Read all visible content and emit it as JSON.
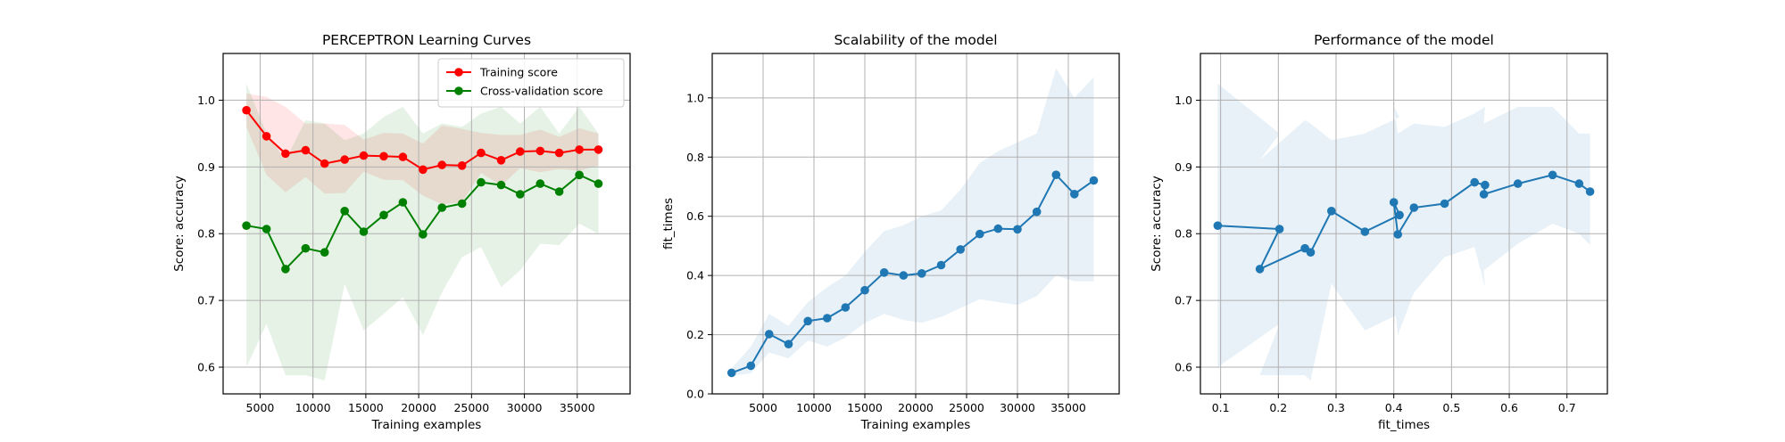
{
  "chart_data": [
    {
      "type": "line",
      "title": "PERCEPTRON Learning Curves",
      "xlabel": "Training examples",
      "ylabel": "Score: accuracy",
      "xlim": [
        1500,
        40000
      ],
      "ylim": [
        0.56,
        1.07
      ],
      "xticks": [
        5000,
        10000,
        15000,
        20000,
        25000,
        30000,
        35000
      ],
      "yticks": [
        0.6,
        0.7,
        0.8,
        0.9,
        1.0
      ],
      "ytick_decimals": 1,
      "grid": true,
      "legend": "top-right",
      "x": [
        3700,
        5600,
        7400,
        9300,
        11100,
        13000,
        14800,
        16700,
        18500,
        20400,
        22200,
        24100,
        25900,
        27800,
        29600,
        31500,
        33300,
        35200,
        37000
      ],
      "series": [
        {
          "name": "Training score",
          "color": "#ff0000",
          "marker": true,
          "values": [
            0.985,
            0.946,
            0.92,
            0.925,
            0.905,
            0.911,
            0.917,
            0.916,
            0.915,
            0.896,
            0.903,
            0.902,
            0.921,
            0.91,
            0.923,
            0.924,
            0.921,
            0.926,
            0.926
          ],
          "band_upper": [
            1.01,
            1.005,
            0.99,
            0.965,
            0.965,
            0.963,
            0.941,
            0.951,
            0.95,
            0.935,
            0.962,
            0.957,
            0.951,
            0.948,
            0.948,
            0.956,
            0.945,
            0.958,
            0.95
          ],
          "band_lower": [
            0.96,
            0.888,
            0.862,
            0.885,
            0.86,
            0.861,
            0.893,
            0.881,
            0.88,
            0.857,
            0.844,
            0.847,
            0.891,
            0.872,
            0.898,
            0.892,
            0.897,
            0.894,
            0.902
          ],
          "band_color": "#ff0000"
        },
        {
          "name": "Cross-validation score",
          "color": "#008000",
          "marker": true,
          "values": [
            0.812,
            0.807,
            0.747,
            0.778,
            0.772,
            0.834,
            0.803,
            0.828,
            0.847,
            0.799,
            0.839,
            0.845,
            0.877,
            0.873,
            0.859,
            0.875,
            0.863,
            0.888,
            0.875
          ],
          "band_upper": [
            1.025,
            0.95,
            0.91,
            0.97,
            0.965,
            0.94,
            0.95,
            0.975,
            0.99,
            0.95,
            0.965,
            0.96,
            0.98,
            0.99,
            0.965,
            0.99,
            0.95,
            0.99,
            0.95
          ],
          "band_lower": [
            0.6,
            0.665,
            0.588,
            0.588,
            0.58,
            0.725,
            0.655,
            0.68,
            0.705,
            0.648,
            0.712,
            0.765,
            0.78,
            0.72,
            0.745,
            0.785,
            0.783,
            0.815,
            0.8
          ],
          "band_color": "#008000"
        }
      ]
    },
    {
      "type": "line",
      "title": "Scalability of the model",
      "xlabel": "Training examples",
      "ylabel": "fit_times",
      "xlim": [
        0,
        40000
      ],
      "ylim": [
        0.0,
        1.15
      ],
      "xticks": [
        5000,
        10000,
        15000,
        20000,
        25000,
        30000,
        35000
      ],
      "yticks": [
        0.0,
        0.2,
        0.4,
        0.6,
        0.8,
        1.0
      ],
      "ytick_decimals": 1,
      "grid": true,
      "legend": "none",
      "x": [
        1900,
        3800,
        5600,
        7500,
        9400,
        11300,
        13100,
        15000,
        16900,
        18800,
        20600,
        22500,
        24400,
        26300,
        28100,
        30000,
        31900,
        33800,
        35600,
        37500
      ],
      "series": [
        {
          "name": "",
          "color": "#1f77b4",
          "marker": true,
          "values": [
            0.071,
            0.095,
            0.202,
            0.168,
            0.246,
            0.256,
            0.292,
            0.35,
            0.41,
            0.4,
            0.407,
            0.435,
            0.488,
            0.54,
            0.558,
            0.556,
            0.615,
            0.74,
            0.675,
            0.721
          ],
          "band_upper": [
            0.085,
            0.16,
            0.27,
            0.23,
            0.31,
            0.36,
            0.4,
            0.48,
            0.55,
            0.57,
            0.6,
            0.62,
            0.69,
            0.78,
            0.82,
            0.85,
            0.88,
            1.1,
            1.0,
            1.07
          ],
          "band_lower": [
            0.06,
            0.07,
            0.14,
            0.12,
            0.18,
            0.16,
            0.19,
            0.24,
            0.27,
            0.25,
            0.24,
            0.26,
            0.29,
            0.32,
            0.31,
            0.3,
            0.33,
            0.4,
            0.38,
            0.38
          ],
          "band_color": "#1f77b4"
        }
      ]
    },
    {
      "type": "line",
      "title": "Performance of the model",
      "xlabel": "fit_times",
      "ylabel": "Score: accuracy",
      "xlim": [
        0.065,
        0.77
      ],
      "ylim": [
        0.56,
        1.07
      ],
      "xticks": [
        0.1,
        0.2,
        0.3,
        0.4,
        0.5,
        0.6,
        0.7
      ],
      "yticks": [
        0.6,
        0.7,
        0.8,
        0.9,
        1.0
      ],
      "xtick_decimals": 1,
      "ytick_decimals": 1,
      "grid": true,
      "legend": "none",
      "x": [
        0.095,
        0.202,
        0.168,
        0.246,
        0.256,
        0.292,
        0.35,
        0.41,
        0.4,
        0.407,
        0.435,
        0.488,
        0.54,
        0.558,
        0.556,
        0.615,
        0.675,
        0.721,
        0.74
      ],
      "series": [
        {
          "name": "",
          "color": "#1f77b4",
          "marker": true,
          "values": [
            0.812,
            0.807,
            0.747,
            0.778,
            0.772,
            0.834,
            0.803,
            0.828,
            0.847,
            0.799,
            0.839,
            0.845,
            0.877,
            0.873,
            0.859,
            0.875,
            0.888,
            0.875,
            0.863
          ],
          "band_upper": [
            1.025,
            0.95,
            0.91,
            0.97,
            0.965,
            0.94,
            0.95,
            0.975,
            0.99,
            0.95,
            0.965,
            0.96,
            0.98,
            0.99,
            0.965,
            0.99,
            0.99,
            0.95,
            0.95
          ],
          "band_lower": [
            0.6,
            0.665,
            0.588,
            0.588,
            0.58,
            0.725,
            0.655,
            0.68,
            0.705,
            0.648,
            0.712,
            0.765,
            0.78,
            0.72,
            0.745,
            0.785,
            0.815,
            0.8,
            0.783
          ],
          "band_color": "#1f77b4"
        }
      ]
    }
  ]
}
